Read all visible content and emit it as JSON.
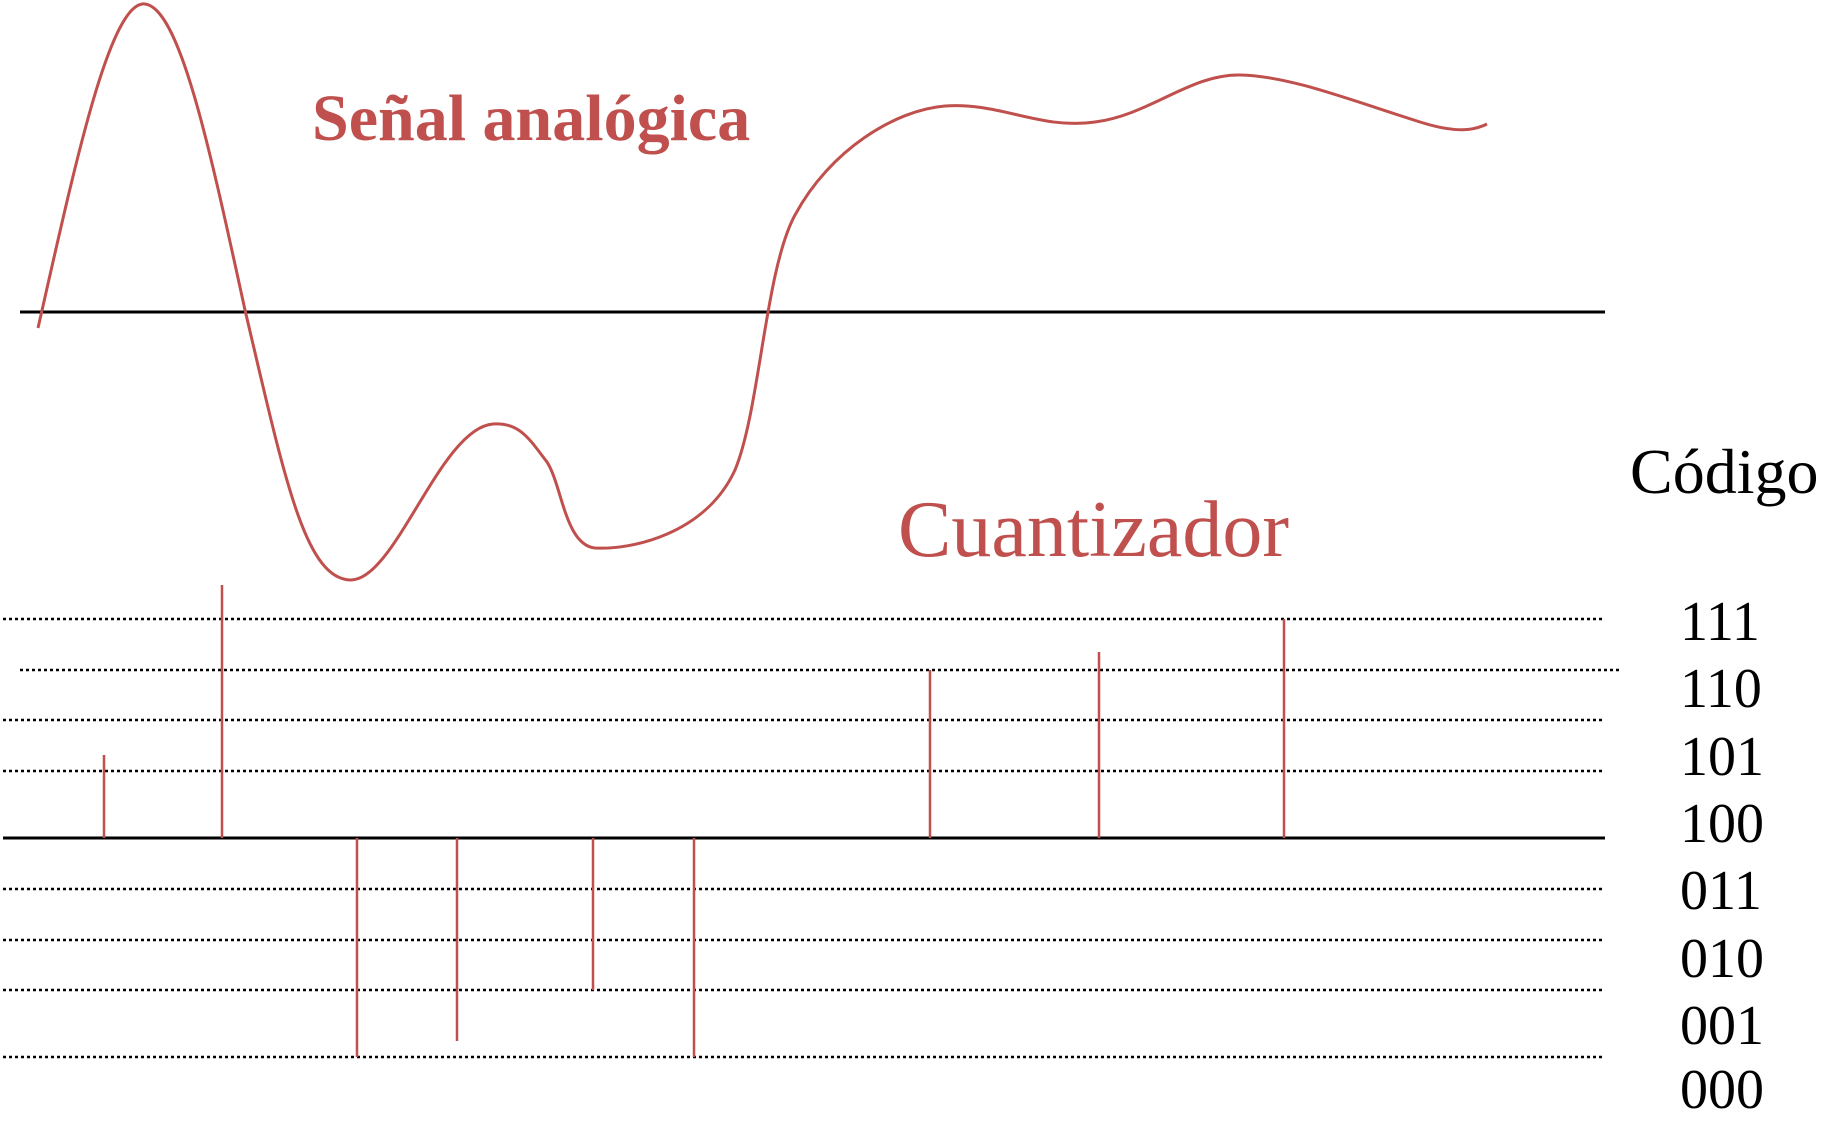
{
  "titles": {
    "analog_signal": "Señal analógica",
    "quantizer": "Cuantizador",
    "code_header": "Código"
  },
  "codes": [
    "111",
    "110",
    "101",
    "100",
    "011",
    "010",
    "001",
    "000"
  ],
  "colors": {
    "signal": "#c0504d",
    "axis": "#000000",
    "levels": "#000000",
    "text": "#000000"
  }
}
